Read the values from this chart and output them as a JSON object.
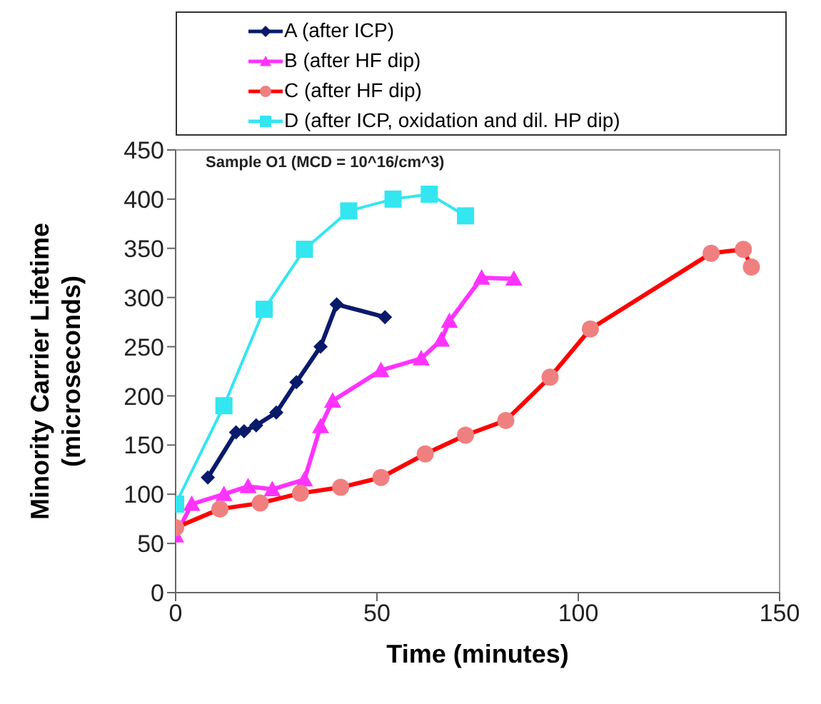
{
  "chart_data": {
    "type": "line",
    "xlabel": "Time (minutes)",
    "ylabel": "Minority Carrier Lifetime (microseconds)",
    "annotations": [
      "Sample O1 (MCD = 10^16/cm^3)"
    ],
    "xlim": [
      0,
      150
    ],
    "xticks": [
      0,
      50,
      100,
      150
    ],
    "ylim": [
      0,
      450
    ],
    "yticks": [
      0,
      50,
      100,
      150,
      200,
      250,
      300,
      350,
      400,
      450
    ],
    "legend": "top",
    "series": [
      {
        "name": "A (after ICP)",
        "color": "#0a1a6b",
        "marker": "diamond",
        "x": [
          8,
          15,
          17,
          20,
          25,
          30,
          36,
          40,
          52
        ],
        "values": [
          117,
          163,
          164,
          170,
          183,
          214,
          250,
          293,
          280
        ]
      },
      {
        "name": "B (after HF dip)",
        "color": "#ff33ff",
        "marker": "triangle",
        "x": [
          0,
          4,
          12,
          18,
          24,
          32,
          36,
          39,
          51,
          61,
          66,
          68,
          76,
          84
        ],
        "values": [
          58,
          90,
          100,
          108,
          105,
          115,
          169,
          195,
          226,
          238,
          257,
          276,
          320,
          319
        ]
      },
      {
        "name": "C (after HF dip)",
        "color": "#ff0000",
        "marker": "circle",
        "x": [
          0,
          11,
          21,
          31,
          41,
          51,
          62,
          72,
          82,
          93,
          103,
          133,
          141,
          143
        ],
        "values": [
          66,
          85,
          91,
          101,
          107,
          117,
          141,
          160,
          175,
          219,
          268,
          345,
          349,
          331
        ]
      },
      {
        "name": "D (after ICP, oxidation and dil. HP dip)",
        "color": "#33e6f0",
        "marker": "square",
        "x": [
          0,
          12,
          22,
          32,
          43,
          54,
          63,
          72
        ],
        "values": [
          90,
          190,
          288,
          349,
          388,
          400,
          405,
          383
        ]
      }
    ]
  }
}
